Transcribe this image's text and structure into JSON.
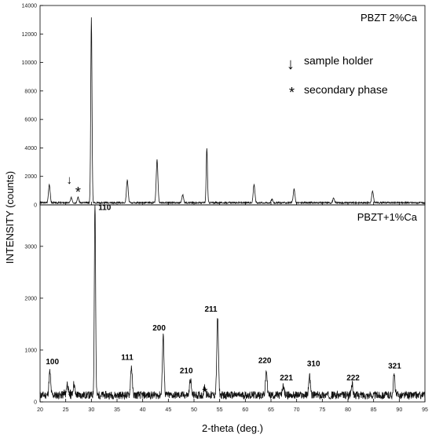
{
  "chart_data": [
    {
      "type": "line",
      "label": "PBZT 2%Ca",
      "xlim": [
        20,
        95
      ],
      "ylim": [
        0,
        14000
      ],
      "yticks": [
        "0",
        "2000",
        "4000",
        "6000",
        "8000",
        "10000",
        "12000",
        "14000"
      ],
      "baseline": 150,
      "peaks": [
        {
          "x": 21.8,
          "y": 1300
        },
        {
          "x": 26.1,
          "y": 350
        },
        {
          "x": 27.4,
          "y": 380
        },
        {
          "x": 30.0,
          "y": 13000
        },
        {
          "x": 37.0,
          "y": 1600
        },
        {
          "x": 42.8,
          "y": 3000
        },
        {
          "x": 47.8,
          "y": 550
        },
        {
          "x": 52.5,
          "y": 3850
        },
        {
          "x": 61.7,
          "y": 1300
        },
        {
          "x": 65.2,
          "y": 250
        },
        {
          "x": 69.5,
          "y": 950
        },
        {
          "x": 77.2,
          "y": 300
        },
        {
          "x": 84.8,
          "y": 800
        }
      ],
      "legend": {
        "arrow_symbol": "↓",
        "arrow_text": "sample holder",
        "star_symbol": "*",
        "star_text": "secondary phase"
      },
      "markers": [
        {
          "symbol": "↓",
          "x": 25.7,
          "y": 1500
        },
        {
          "symbol": "*",
          "x": 27.4,
          "y": 550
        }
      ]
    },
    {
      "type": "line",
      "label": "PBZT+1%Ca",
      "xlim": [
        20,
        95
      ],
      "ylim": [
        0,
        3800
      ],
      "yticks": [
        "0",
        "1000",
        "2000",
        "3000"
      ],
      "xticks": [
        "20",
        "25",
        "30",
        "35",
        "40",
        "45",
        "50",
        "55",
        "60",
        "65",
        "70",
        "75",
        "80",
        "85",
        "90",
        "95"
      ],
      "xlabel": "2-theta (deg.)",
      "baseline": 130,
      "peaks": [
        {
          "x": 21.9,
          "y": 450
        },
        {
          "x": 25.3,
          "y": 230
        },
        {
          "x": 26.6,
          "y": 220
        },
        {
          "x": 30.7,
          "y": 3800
        },
        {
          "x": 37.8,
          "y": 560
        },
        {
          "x": 44.0,
          "y": 1130
        },
        {
          "x": 49.3,
          "y": 310
        },
        {
          "x": 52.1,
          "y": 180
        },
        {
          "x": 54.6,
          "y": 1500
        },
        {
          "x": 64.1,
          "y": 470
        },
        {
          "x": 67.4,
          "y": 190
        },
        {
          "x": 72.5,
          "y": 370
        },
        {
          "x": 80.8,
          "y": 210
        },
        {
          "x": 89.0,
          "y": 390
        }
      ],
      "peak_labels": [
        {
          "text": "100",
          "x": 22.4,
          "y": 730
        },
        {
          "text": "110",
          "x": 32.6,
          "y": 3700
        },
        {
          "text": "111",
          "x": 37.0,
          "y": 810
        },
        {
          "text": "200",
          "x": 43.2,
          "y": 1380
        },
        {
          "text": "210",
          "x": 48.5,
          "y": 550
        },
        {
          "text": "211",
          "x": 53.3,
          "y": 1740
        },
        {
          "text": "220",
          "x": 63.8,
          "y": 750
        },
        {
          "text": "221",
          "x": 68.0,
          "y": 420
        },
        {
          "text": "310",
          "x": 73.3,
          "y": 690
        },
        {
          "text": "222",
          "x": 81.0,
          "y": 420
        },
        {
          "text": "321",
          "x": 89.1,
          "y": 640
        }
      ],
      "markers": [
        {
          "symbol": "*",
          "x": 24.7,
          "y": 40
        },
        {
          "symbol": "*",
          "x": 25.9,
          "y": 40
        },
        {
          "symbol": "*",
          "x": 27.3,
          "y": 0
        },
        {
          "symbol": "*",
          "x": 52.1,
          "y": 80
        }
      ]
    }
  ],
  "ylabel": "INTENSITY (counts)"
}
